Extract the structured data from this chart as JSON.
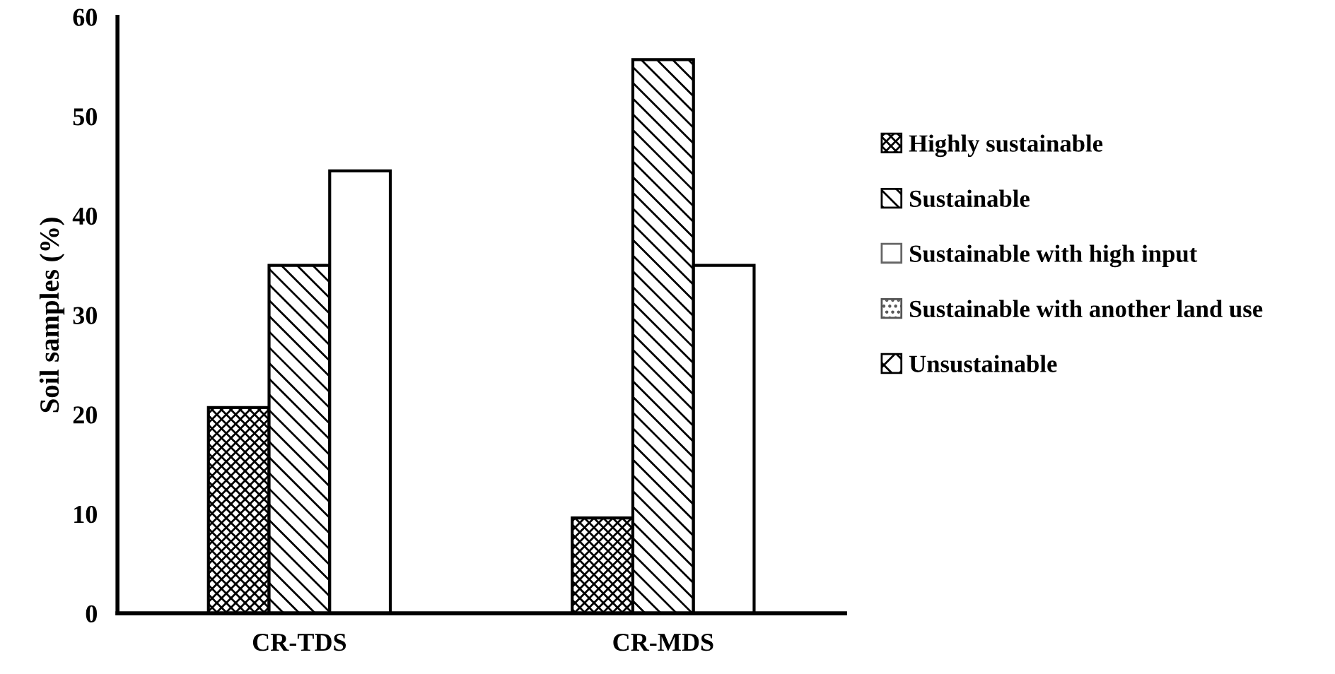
{
  "chart_data": {
    "type": "bar",
    "ylabel": "Soil samples (%)",
    "categories": [
      "CR-TDS",
      "CR-MDS"
    ],
    "series": [
      {
        "name": "Highly sustainable",
        "color": "#000000",
        "values": [
          20.7,
          9.6
        ]
      },
      {
        "name": "Sustainable",
        "color": "#000000",
        "values": [
          35.0,
          55.7
        ]
      },
      {
        "name": "Sustainable with high input",
        "color": "#666666",
        "values": [
          44.5,
          35.0
        ]
      },
      {
        "name": "Sustainable with another land use",
        "color": "#555555",
        "values": [
          null,
          null
        ]
      },
      {
        "name": "Unsustainable",
        "color": "#000000",
        "values": [
          null,
          null
        ]
      }
    ],
    "ylim": [
      0,
      60
    ],
    "yticks": [
      0,
      10,
      20,
      30,
      40,
      50,
      60
    ],
    "grid": false,
    "legend": "right"
  }
}
